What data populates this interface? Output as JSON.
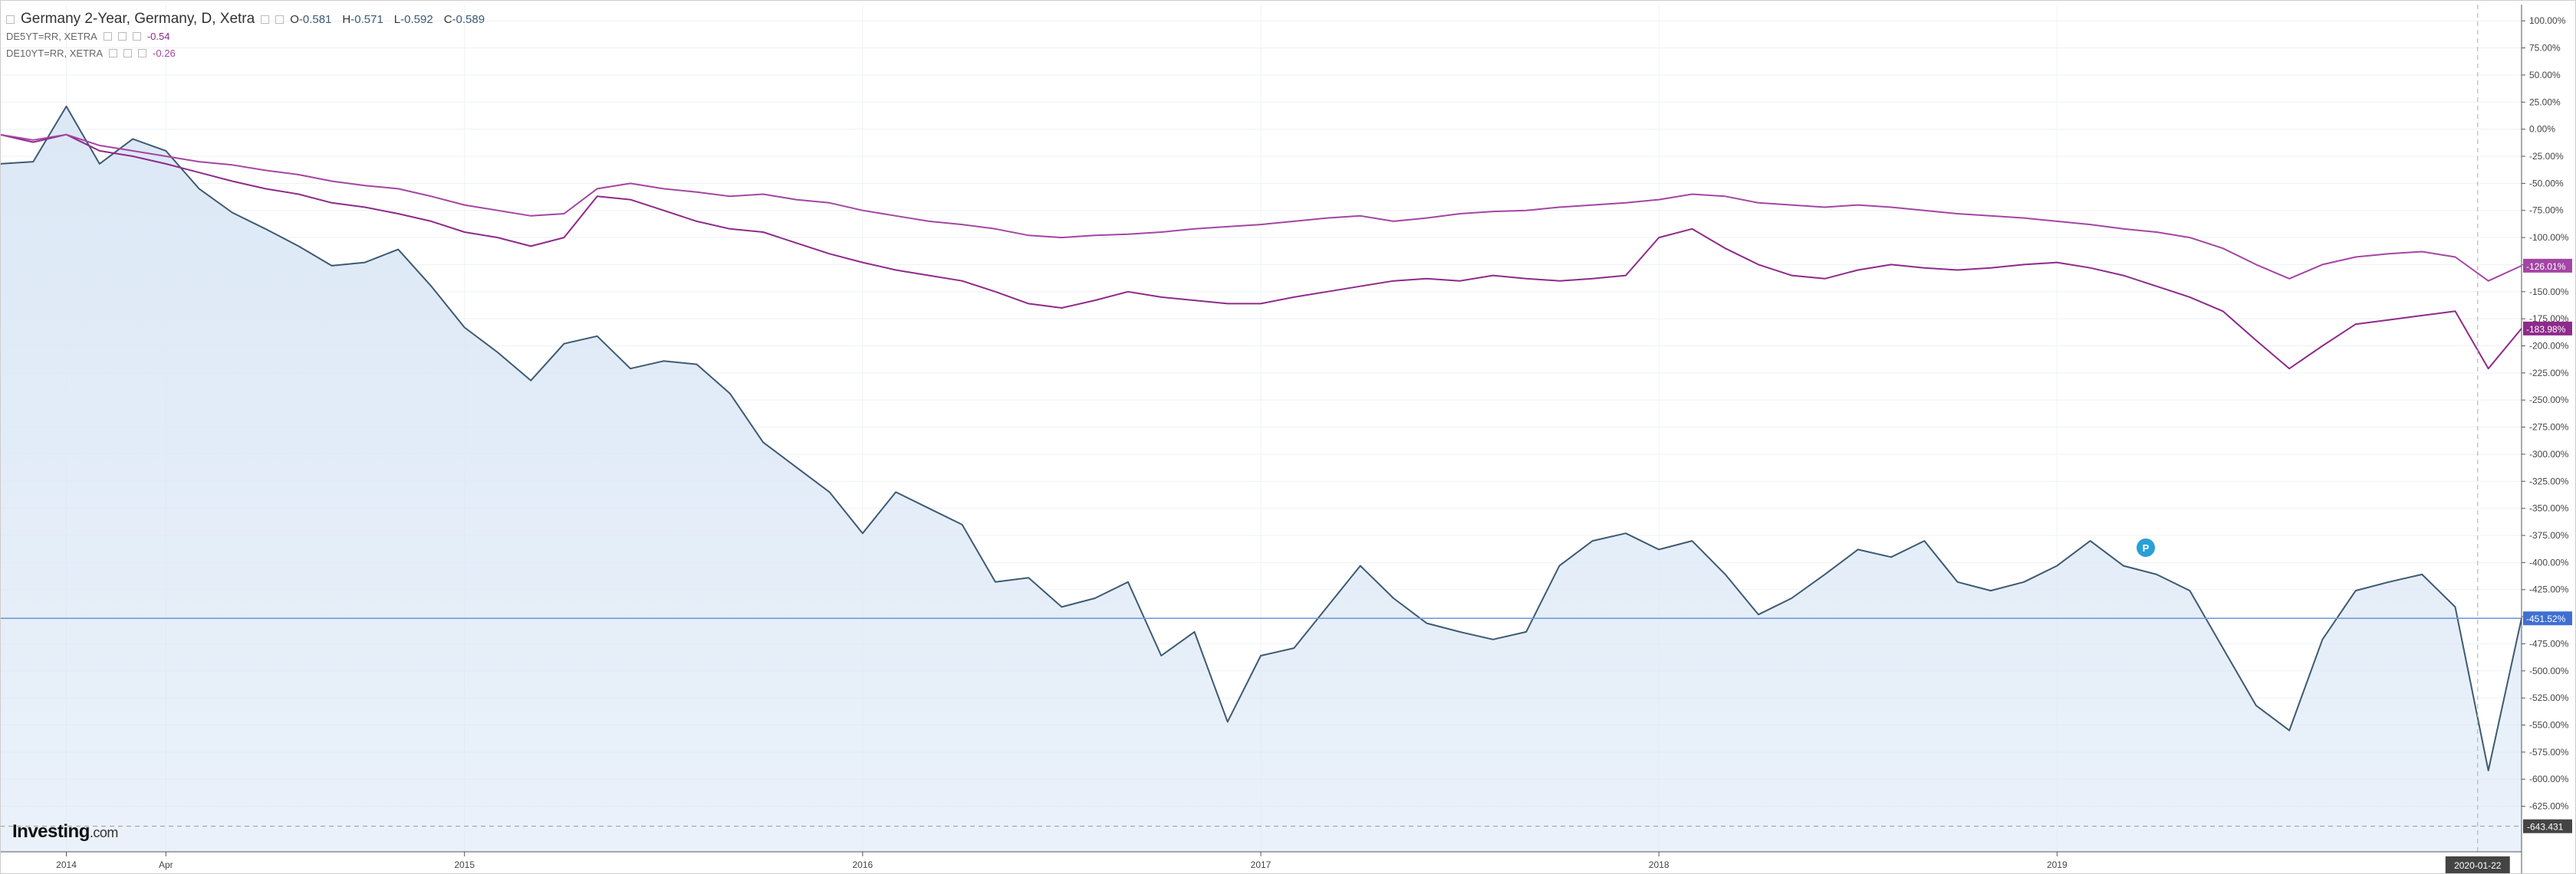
{
  "chart_data": {
    "type": "line",
    "title": "Germany 2-Year, Germany, D, Xetra",
    "ohlc": [
      {
        "label": "O",
        "value": -0.581
      },
      {
        "label": "H",
        "value": -0.571
      },
      {
        "label": "L",
        "value": -0.592
      },
      {
        "label": "C",
        "value": -0.589
      }
    ],
    "x": [
      "2013-11",
      "2013-12",
      "2014-01",
      "2014-02",
      "2014-03",
      "2014-04",
      "2014-05",
      "2014-06",
      "2014-07",
      "2014-08",
      "2014-09",
      "2014-10",
      "2014-11",
      "2014-12",
      "2015-01",
      "2015-02",
      "2015-03",
      "2015-04",
      "2015-05",
      "2015-06",
      "2015-07",
      "2015-08",
      "2015-09",
      "2015-10",
      "2015-11",
      "2015-12",
      "2016-01",
      "2016-02",
      "2016-03",
      "2016-04",
      "2016-05",
      "2016-06",
      "2016-07",
      "2016-08",
      "2016-09",
      "2016-10",
      "2016-11",
      "2016-12",
      "2017-01",
      "2017-02",
      "2017-03",
      "2017-04",
      "2017-05",
      "2017-06",
      "2017-07",
      "2017-08",
      "2017-09",
      "2017-10",
      "2017-11",
      "2017-12",
      "2018-01",
      "2018-02",
      "2018-03",
      "2018-04",
      "2018-05",
      "2018-06",
      "2018-07",
      "2018-08",
      "2018-09",
      "2018-10",
      "2018-11",
      "2018-12",
      "2019-01",
      "2019-02",
      "2019-03",
      "2019-04",
      "2019-05",
      "2019-06",
      "2019-07",
      "2019-08",
      "2019-09",
      "2019-10",
      "2019-11",
      "2019-12",
      "2020-01",
      "2020-02",
      "2020-03"
    ],
    "series": [
      {
        "color": "#3d5a73",
        "fill": "#dce8f6",
        "values": [
          -32,
          -30,
          21,
          -32,
          -9,
          -20,
          -55,
          -77,
          -92,
          -108,
          -126,
          -123,
          -111,
          -145,
          -183,
          -206,
          -232,
          -198,
          -191,
          -221,
          -214,
          -217,
          -244,
          -289,
          -312,
          -335,
          -373,
          -335,
          -350,
          -365,
          -418,
          -414,
          -441,
          -433,
          -418,
          -486,
          -464,
          -547,
          -486,
          -479,
          -441,
          -403,
          -433,
          -456,
          -464,
          -471,
          -464,
          -403,
          -380,
          -373,
          -388,
          -380,
          -411,
          -448,
          -433,
          -411,
          -388,
          -395,
          -380,
          -418,
          -426,
          -418,
          -403,
          -380,
          -403,
          -411,
          -426,
          -479,
          -532,
          -555,
          -471,
          -426,
          -418,
          -411,
          -441,
          -592,
          -451.52
        ],
        "last": {
          "value": -451.52,
          "label": "-451.52%"
        }
      },
      {
        "name": "DE5YT=RR, XETRA",
        "color": "#8e2a8b",
        "quote": -0.54,
        "values": [
          -5,
          -12,
          -5,
          -20,
          -25,
          -32,
          -40,
          -48,
          -55,
          -60,
          -68,
          -72,
          -78,
          -85,
          -95,
          -100,
          -108,
          -100,
          -62,
          -65,
          -75,
          -85,
          -92,
          -95,
          -105,
          -115,
          -123,
          -130,
          -135,
          -140,
          -150,
          -161,
          -165,
          -158,
          -150,
          -155,
          -158,
          -161,
          -161,
          -155,
          -150,
          -145,
          -140,
          -138,
          -140,
          -135,
          -138,
          -140,
          -138,
          -135,
          -100,
          -92,
          -110,
          -125,
          -135,
          -138,
          -130,
          -125,
          -128,
          -130,
          -128,
          -125,
          -123,
          -128,
          -135,
          -145,
          -155,
          -168,
          -195,
          -221,
          -200,
          -180,
          -176,
          -172,
          -168,
          -221,
          -183.98
        ],
        "last": {
          "value": -183.98,
          "label": "-183.98%"
        }
      },
      {
        "name": "DE10YT=RR, XETRA",
        "color": "#a445a3",
        "quote": -0.26,
        "values": [
          -5,
          -10,
          -5,
          -15,
          -20,
          -25,
          -30,
          -33,
          -38,
          -42,
          -48,
          -52,
          -55,
          -62,
          -70,
          -75,
          -80,
          -78,
          -55,
          -50,
          -55,
          -58,
          -62,
          -60,
          -65,
          -68,
          -75,
          -80,
          -85,
          -88,
          -92,
          -98,
          -100,
          -98,
          -97,
          -95,
          -92,
          -90,
          -88,
          -85,
          -82,
          -80,
          -85,
          -82,
          -78,
          -76,
          -75,
          -72,
          -70,
          -68,
          -65,
          -60,
          -62,
          -68,
          -70,
          -72,
          -70,
          -72,
          -75,
          -78,
          -80,
          -82,
          -85,
          -88,
          -92,
          -95,
          -100,
          -110,
          -125,
          -138,
          -125,
          -118,
          -115,
          -113,
          -118,
          -140,
          -126.01
        ],
        "last": {
          "value": -126.01,
          "label": "-126.01%"
        }
      }
    ],
    "ylim": [
      -667,
      115
    ],
    "yticks": [
      {
        "value": 100,
        "label": "100.00%"
      },
      {
        "value": 75,
        "label": "75.00%"
      },
      {
        "value": 50,
        "label": "50.00%"
      },
      {
        "value": 25,
        "label": "25.00%"
      },
      {
        "value": 0,
        "label": "0.00%"
      },
      {
        "value": -25,
        "label": "-25.00%"
      },
      {
        "value": -50,
        "label": "-50.00%"
      },
      {
        "value": -75,
        "label": "-75.00%"
      },
      {
        "value": -100,
        "label": "-100.00%"
      },
      {
        "value": -125,
        "label": "-125.00%"
      },
      {
        "value": -150,
        "label": "-150.00%"
      },
      {
        "value": -175,
        "label": "-175.00%"
      },
      {
        "value": -200,
        "label": "-200.00%"
      },
      {
        "value": -225,
        "label": "-225.00%"
      },
      {
        "value": -250,
        "label": "-250.00%"
      },
      {
        "value": -275,
        "label": "-275.00%"
      },
      {
        "value": -300,
        "label": "-300.00%"
      },
      {
        "value": -325,
        "label": "-325.00%"
      },
      {
        "value": -350,
        "label": "-350.00%"
      },
      {
        "value": -375,
        "label": "-375.00%"
      },
      {
        "value": -400,
        "label": "-400.00%"
      },
      {
        "value": -425,
        "label": "-425.00%"
      },
      {
        "value": -450,
        "label": "-450.00%"
      },
      {
        "value": -475,
        "label": "-475.00%"
      },
      {
        "value": -500,
        "label": "-500.00%"
      },
      {
        "value": -525,
        "label": "-525.00%"
      },
      {
        "value": -550,
        "label": "-550.00%"
      },
      {
        "value": -575,
        "label": "-575.00%"
      },
      {
        "value": -600,
        "label": "-600.00%"
      },
      {
        "value": -625,
        "label": "-625.00%"
      }
    ],
    "xlim": [
      "2013-11",
      "2020-03"
    ],
    "xticks": [
      {
        "value": "2014-01",
        "label": "2014"
      },
      {
        "value": "2014-04",
        "label": "Apr"
      },
      {
        "value": "2015-01",
        "label": "2015"
      },
      {
        "value": "2016-01",
        "label": "2016"
      },
      {
        "value": "2017-01",
        "label": "2017"
      },
      {
        "value": "2018-01",
        "label": "2018"
      },
      {
        "value": "2019-01",
        "label": "2019"
      }
    ],
    "grid": true,
    "low_line": -643.431,
    "crosshair": "2020-01-22",
    "event_marker": "P",
    "logo": "Investing",
    "logo_suffix": ".com"
  }
}
